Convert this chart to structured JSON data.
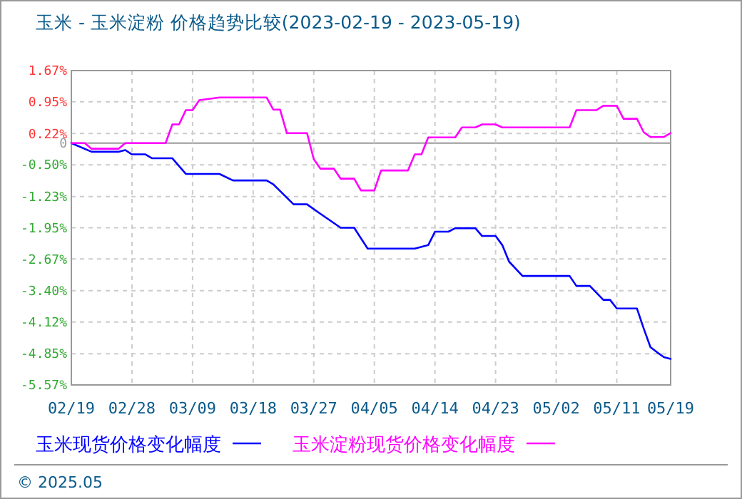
{
  "chart_data": {
    "type": "line",
    "title": "玉米 - 玉米淀粉 价格趋势比较(2023-02-19 - 2023-05-19)",
    "annotations": [
      "© 2025.05"
    ],
    "legend": "bottom",
    "grid": true,
    "line_style": "solid",
    "marker": "none",
    "xlim": [
      "2023-02-19",
      "2023-05-19"
    ],
    "xticks": [
      {
        "value": "2023-02-19",
        "label": "02/19"
      },
      {
        "value": "2023-02-28",
        "label": "02/28"
      },
      {
        "value": "2023-03-09",
        "label": "03/09"
      },
      {
        "value": "2023-03-18",
        "label": "03/18"
      },
      {
        "value": "2023-03-27",
        "label": "03/27"
      },
      {
        "value": "2023-04-05",
        "label": "04/05"
      },
      {
        "value": "2023-04-14",
        "label": "04/14"
      },
      {
        "value": "2023-04-23",
        "label": "04/23"
      },
      {
        "value": "2023-05-02",
        "label": "05/02"
      },
      {
        "value": "2023-05-11",
        "label": "05/11"
      },
      {
        "value": "2023-05-19",
        "label": "05/19"
      }
    ],
    "ylim": [
      -5.57,
      1.67
    ],
    "yticks": [
      {
        "value": 1.67,
        "label": "1.67%"
      },
      {
        "value": 0.95,
        "label": "0.95%"
      },
      {
        "value": 0.22,
        "label": "0.22%"
      },
      0,
      {
        "value": -0.5,
        "label": "-0.50%"
      },
      {
        "value": -1.23,
        "label": "-1.23%"
      },
      {
        "value": -1.95,
        "label": "-1.95%"
      },
      {
        "value": -2.67,
        "label": "-2.67%"
      },
      {
        "value": -3.4,
        "label": "-3.40%"
      },
      {
        "value": -4.12,
        "label": "-4.12%"
      },
      {
        "value": -4.85,
        "label": "-4.85%"
      },
      {
        "value": -5.57,
        "label": "-5.57%"
      }
    ],
    "series": [
      {
        "name": "玉米现货价格变化幅度",
        "color": "#0000ff",
        "x": [
          "2023-02-19",
          "2023-02-22",
          "2023-02-26",
          "2023-02-27",
          "2023-02-28",
          "2023-03-02",
          "2023-03-03",
          "2023-03-06",
          "2023-03-08",
          "2023-03-13",
          "2023-03-15",
          "2023-03-20",
          "2023-03-21",
          "2023-03-24",
          "2023-03-26",
          "2023-03-28",
          "2023-03-31",
          "2023-04-02",
          "2023-04-04",
          "2023-04-11",
          "2023-04-13",
          "2023-04-14",
          "2023-04-16",
          "2023-04-17",
          "2023-04-20",
          "2023-04-21",
          "2023-04-23",
          "2023-04-24",
          "2023-04-25",
          "2023-04-27",
          "2023-05-04",
          "2023-05-05",
          "2023-05-07",
          "2023-05-09",
          "2023-05-10",
          "2023-05-11",
          "2023-05-14",
          "2023-05-15",
          "2023-05-16",
          "2023-05-17",
          "2023-05-18",
          "2023-05-19"
        ],
        "values": [
          0,
          -0.2,
          -0.2,
          -0.16,
          -0.26,
          -0.26,
          -0.35,
          -0.35,
          -0.71,
          -0.71,
          -0.86,
          -0.86,
          -0.95,
          -1.41,
          -1.41,
          -1.63,
          -1.95,
          -1.95,
          -2.43,
          -2.43,
          -2.35,
          -2.04,
          -2.04,
          -1.96,
          -1.96,
          -2.14,
          -2.14,
          -2.35,
          -2.73,
          -3.06,
          -3.06,
          -3.29,
          -3.29,
          -3.61,
          -3.61,
          -3.81,
          -3.81,
          -4.27,
          -4.7,
          -4.82,
          -4.93,
          -4.97
        ]
      },
      {
        "name": "玉米淀粉现货价格变化幅度",
        "color": "#ff00ff",
        "x": [
          "2023-02-19",
          "2023-02-21",
          "2023-02-22",
          "2023-02-26",
          "2023-02-27",
          "2023-03-05",
          "2023-03-06",
          "2023-03-07",
          "2023-03-08",
          "2023-03-09",
          "2023-03-10",
          "2023-03-13",
          "2023-03-20",
          "2023-03-21",
          "2023-03-22",
          "2023-03-23",
          "2023-03-26",
          "2023-03-27",
          "2023-03-28",
          "2023-03-30",
          "2023-03-31",
          "2023-04-02",
          "2023-04-03",
          "2023-04-05",
          "2023-04-06",
          "2023-04-10",
          "2023-04-11",
          "2023-04-12",
          "2023-04-13",
          "2023-04-17",
          "2023-04-18",
          "2023-04-20",
          "2023-04-21",
          "2023-04-23",
          "2023-04-24",
          "2023-05-04",
          "2023-05-05",
          "2023-05-08",
          "2023-05-09",
          "2023-05-11",
          "2023-05-12",
          "2023-05-14",
          "2023-05-15",
          "2023-05-16",
          "2023-05-18",
          "2023-05-19"
        ],
        "values": [
          0,
          0,
          -0.13,
          -0.13,
          0,
          0,
          0.43,
          0.43,
          0.76,
          0.76,
          0.99,
          1.05,
          1.05,
          0.77,
          0.77,
          0.23,
          0.23,
          -0.37,
          -0.59,
          -0.59,
          -0.82,
          -0.82,
          -1.09,
          -1.09,
          -0.63,
          -0.63,
          -0.26,
          -0.26,
          0.13,
          0.13,
          0.36,
          0.36,
          0.43,
          0.43,
          0.36,
          0.36,
          0.76,
          0.76,
          0.86,
          0.86,
          0.56,
          0.56,
          0.25,
          0.14,
          0.14,
          0.23
        ]
      }
    ]
  }
}
